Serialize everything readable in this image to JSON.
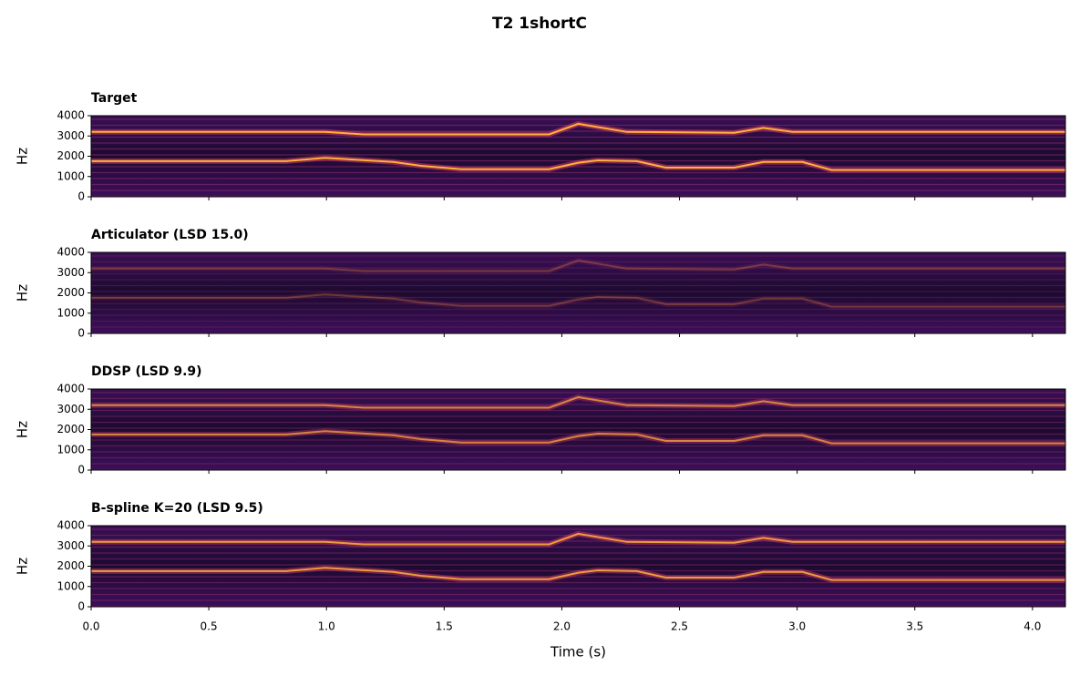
{
  "title": "T2 1shortC",
  "chart_data": [
    {
      "type": "spectrogram",
      "title": "Target",
      "ylabel": "Hz",
      "ylim": [
        0,
        4000
      ],
      "yticks": [
        0,
        1000,
        2000,
        3000,
        4000
      ]
    },
    {
      "type": "spectrogram",
      "title": "Articulator (LSD 15.0)",
      "ylabel": "Hz",
      "ylim": [
        0,
        4000
      ],
      "yticks": [
        0,
        1000,
        2000,
        3000,
        4000
      ]
    },
    {
      "type": "spectrogram",
      "title": "DDSP (LSD 9.9)",
      "ylabel": "Hz",
      "ylim": [
        0,
        4000
      ],
      "yticks": [
        0,
        1000,
        2000,
        3000,
        4000
      ]
    },
    {
      "type": "spectrogram",
      "title": "B-spline K=20 (LSD 9.5)",
      "ylabel": "Hz",
      "ylim": [
        0,
        4000
      ],
      "yticks": [
        0,
        1000,
        2000,
        3000,
        4000
      ],
      "xlabel": "Time (s)",
      "xlim": [
        0,
        4.14
      ],
      "xticks": [
        {
          "value": 0,
          "label": "0.0"
        },
        0.5,
        {
          "value": 1,
          "label": "1.0"
        },
        1.5,
        {
          "value": 2,
          "label": "2.0"
        },
        2.5,
        {
          "value": 3,
          "label": "3.0"
        },
        3.5,
        {
          "value": 4,
          "label": "4.0"
        }
      ]
    }
  ]
}
